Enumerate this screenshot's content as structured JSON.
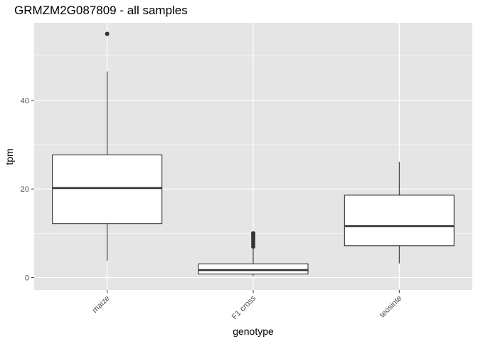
{
  "chart_data": {
    "type": "boxplot",
    "title": "GRMZM2G087809 - all samples",
    "xlabel": "genotype",
    "ylabel": "tpm",
    "categories": [
      "maize",
      "F1 cross",
      "teosinte"
    ],
    "ylim": [
      -2.8,
      57.5
    ],
    "y_ticks": [
      0,
      20,
      40
    ],
    "grid": true,
    "x_tick_rotation": "45 degrees",
    "boxes": [
      {
        "category": "maize",
        "whisker_low": 3.8,
        "q1": 12.2,
        "median": 20.2,
        "q3": 27.7,
        "whisker_high": 46.5,
        "outliers": [
          55.0
        ]
      },
      {
        "category": "F1 cross",
        "whisker_low": 0.3,
        "q1": 0.8,
        "median": 1.7,
        "q3": 3.1,
        "whisker_high": 6.8,
        "outliers": [
          7.0,
          7.6,
          8.2,
          8.7,
          9.2,
          9.7,
          10.0
        ]
      },
      {
        "category": "teosinte",
        "whisker_low": 3.2,
        "q1": 7.2,
        "median": 11.6,
        "q3": 18.6,
        "whisker_high": 26.1,
        "outliers": []
      }
    ],
    "colors": {
      "panel_background": "#e5e5e5",
      "grid_line": "#ffffff",
      "box_fill": "#ffffff",
      "box_stroke": "#333333",
      "median_stroke": "#333333",
      "outlier": "#333333"
    }
  }
}
